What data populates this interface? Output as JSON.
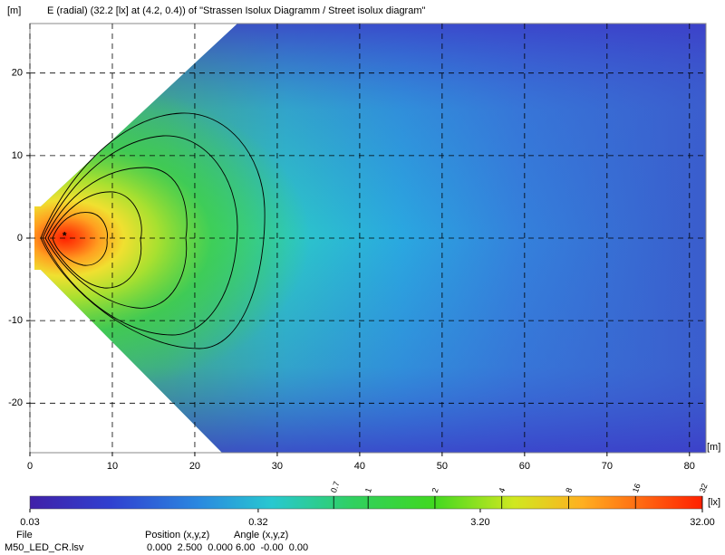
{
  "chart_data": {
    "type": "heatmap",
    "title": "E (radial) (32.2 [lx] at (4.2, 0.4)) of \"Strassen Isolux Diagramm / Street isolux diagram\"",
    "x_label": "[m]",
    "y_label": "[m]",
    "xlim": [
      0,
      82
    ],
    "ylim": [
      -26,
      26
    ],
    "xticks": [
      0,
      10,
      20,
      30,
      40,
      50,
      60,
      70,
      80
    ],
    "yticks": [
      -20,
      -10,
      0,
      10,
      20
    ],
    "grid": true,
    "peak": {
      "x": 4.2,
      "y": 0.4
    },
    "colorbar": {
      "unit": "[lx]",
      "scale": "log",
      "lim": [
        0.03,
        32
      ],
      "ticks": [
        0.03,
        0.32,
        {
          "value": 3.2,
          "label": "3.20"
        },
        {
          "value": 32,
          "label": "32.00"
        }
      ],
      "contour_levels": [
        0.7,
        1,
        2,
        4,
        8,
        16,
        32
      ]
    }
  },
  "footer": {
    "headers": [
      "File",
      "Position (x,y,z)",
      "Angle (x,y,z)"
    ],
    "values": [
      "M50_LED_CR.lsv",
      "0.000  2.500  0.000",
      "6.00  -0.00  0.00"
    ]
  }
}
